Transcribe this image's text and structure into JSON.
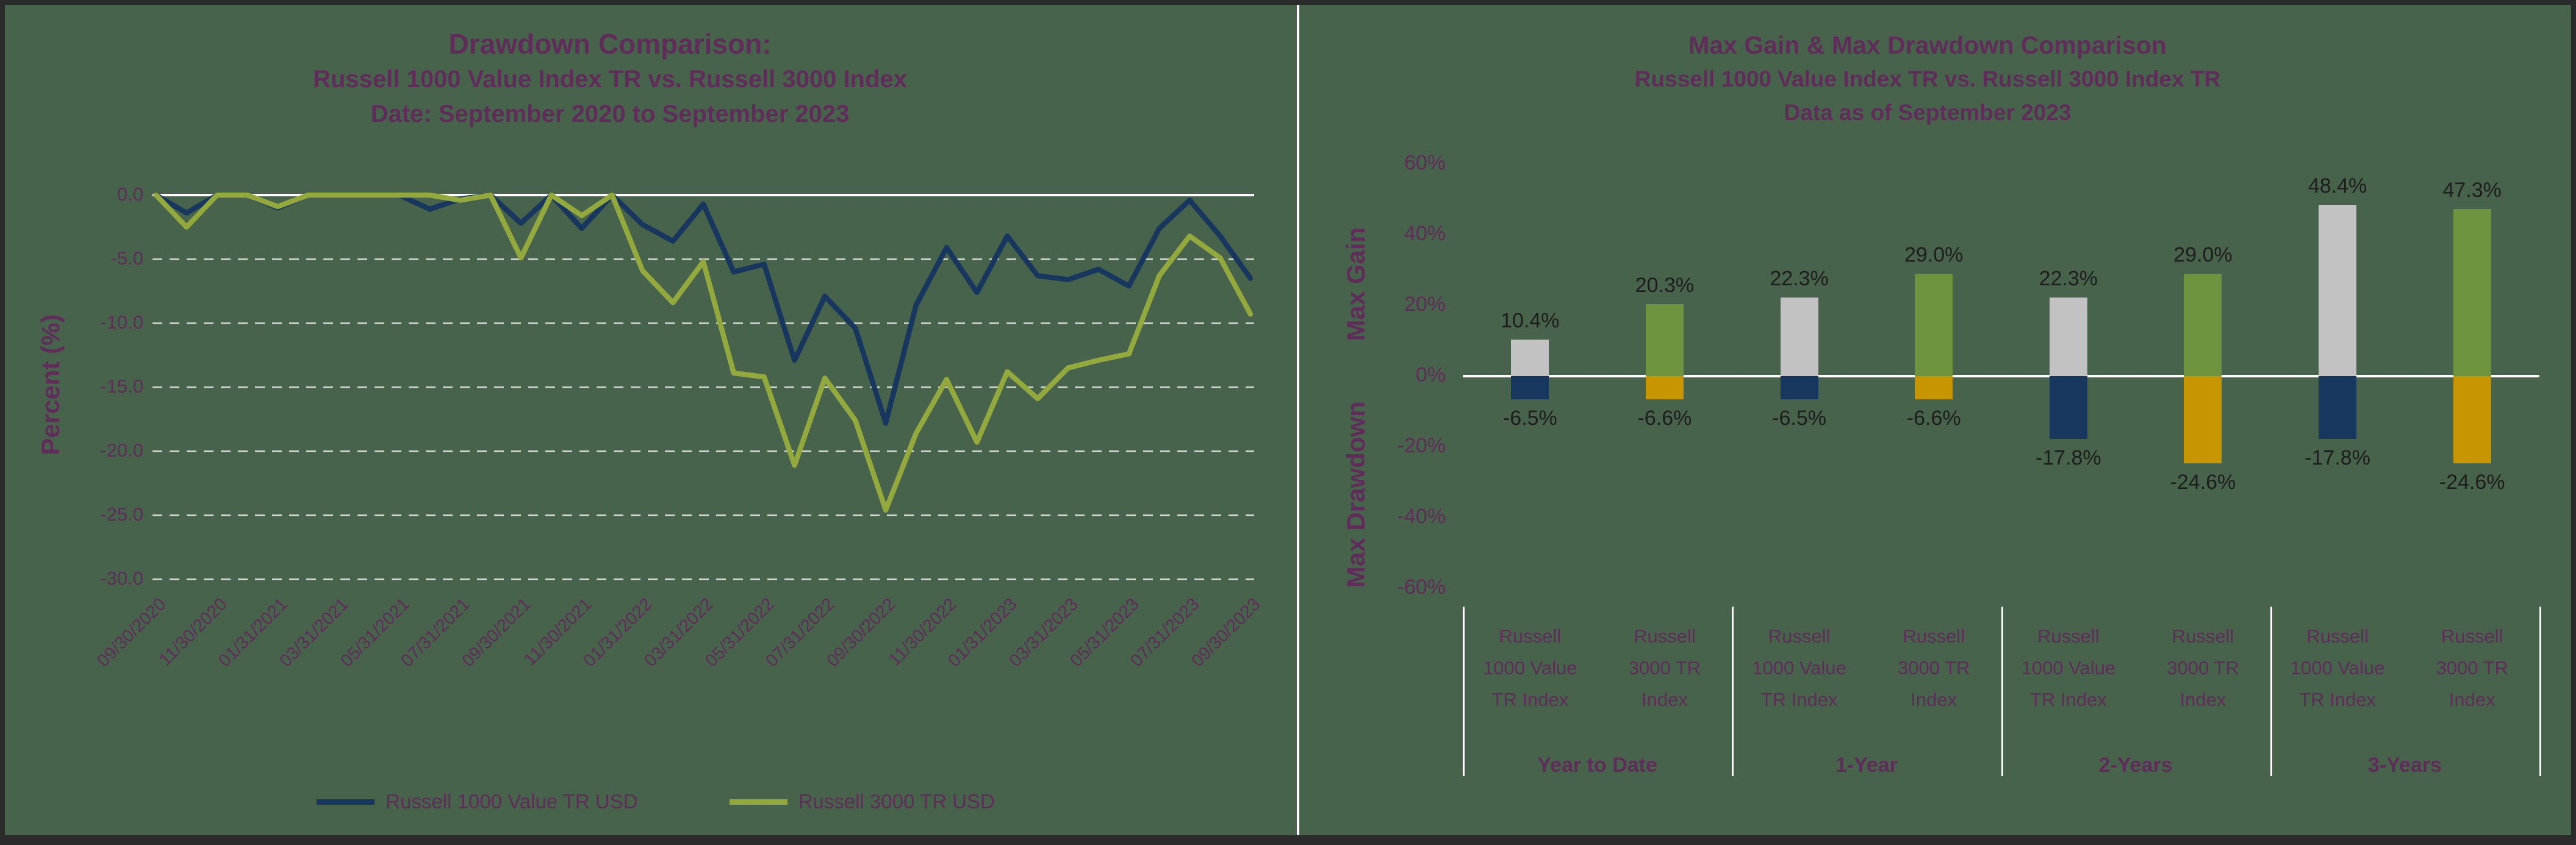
{
  "colors": {
    "background": "#47634b",
    "border": "#2b2b2b",
    "divider": "#ffffff",
    "grid_white": "#ffffff",
    "title_text": "#602d5a",
    "axis_text": "#602d5a",
    "data_label_text": "#1e1e1e",
    "navy": "#17375e",
    "line_green": "#93a83d",
    "bar_gray": "#c2c2c2",
    "bar_green": "#6f9440",
    "bar_gold": "#c79500"
  },
  "chart_data": [
    {
      "type": "line",
      "title": "Drawdown Comparison:",
      "subtitle1": "Russell 1000 Value Index TR vs. Russell 3000 Index",
      "subtitle2": "Date: September 2020 to September 2023",
      "ylabel": "Percent (%)",
      "ylim": [
        -30,
        0
      ],
      "grid": "dashed-horizontal",
      "legend_position": "bottom",
      "y_ticks": [
        "0.0",
        "-5.0",
        "-10.0",
        "-15.0",
        "-20.0",
        "-25.0",
        "-30.0"
      ],
      "x": [
        "09/30/2020",
        "10/31/2020",
        "11/30/2020",
        "12/31/2020",
        "01/31/2021",
        "02/28/2021",
        "03/31/2021",
        "04/30/2021",
        "05/31/2021",
        "06/30/2021",
        "07/31/2021",
        "08/31/2021",
        "09/30/2021",
        "10/31/2021",
        "11/30/2021",
        "12/31/2021",
        "01/31/2022",
        "02/28/2022",
        "03/31/2022",
        "04/30/2022",
        "05/31/2022",
        "06/30/2022",
        "07/31/2022",
        "08/31/2022",
        "09/30/2022",
        "10/31/2022",
        "11/30/2022",
        "12/31/2022",
        "01/31/2023",
        "02/28/2023",
        "03/31/2023",
        "04/30/2023",
        "05/31/2023",
        "06/30/2023",
        "07/31/2023",
        "08/31/2023",
        "09/30/2023"
      ],
      "x_tick_labels": [
        "09/30/2020",
        "11/30/2020",
        "01/31/2021",
        "03/31/2021",
        "05/31/2021",
        "07/31/2021",
        "09/30/2021",
        "11/30/2021",
        "01/31/2022",
        "03/31/2022",
        "05/31/2022",
        "07/31/2022",
        "09/30/2022",
        "11/30/2022",
        "01/31/2023",
        "03/31/2023",
        "05/31/2023",
        "07/31/2023",
        "09/30/2023"
      ],
      "series": [
        {
          "name": "Russell 1000 Value TR USD",
          "color": "#17375e",
          "values": [
            0,
            -1.4,
            0,
            0,
            -1.0,
            0,
            0,
            0,
            0,
            -1.1,
            -0.3,
            0,
            -2.2,
            0,
            -2.6,
            0,
            -2.3,
            -3.6,
            -0.7,
            -6.0,
            -5.4,
            -12.9,
            -7.9,
            -10.4,
            -17.8,
            -8.6,
            -4.1,
            -7.6,
            -3.2,
            -6.3,
            -6.6,
            -5.8,
            -7.1,
            -2.6,
            -0.4,
            -3.2,
            -6.5
          ]
        },
        {
          "name": "Russell 3000 TR USD",
          "color": "#93a83d",
          "values": [
            0,
            -2.5,
            0,
            0,
            -0.9,
            0,
            0,
            0,
            0,
            0,
            -0.4,
            0,
            -4.9,
            0,
            -1.6,
            0,
            -5.9,
            -8.4,
            -5.2,
            -13.9,
            -14.2,
            -21.1,
            -14.3,
            -17.6,
            -24.6,
            -18.6,
            -14.4,
            -19.3,
            -13.8,
            -15.9,
            -13.5,
            -12.9,
            -12.4,
            -6.3,
            -3.2,
            -4.9,
            -9.3
          ]
        }
      ]
    },
    {
      "type": "bar",
      "title": "Max Gain & Max Drawdown Comparison",
      "subtitle1": "Russell 1000 Value Index TR vs. Russell 3000 Index TR",
      "subtitle2": "Data as of September 2023",
      "axis_label_top": "Max Gain",
      "axis_label_bottom": "Max Drawdown",
      "ylim": [
        -60,
        60
      ],
      "y_ticks": [
        "60%",
        "40%",
        "20%",
        "0%",
        "-20%",
        "-40%",
        "-60%"
      ],
      "groups": [
        {
          "label": "Year to Date",
          "bars": [
            {
              "series": "Russell 1000 Value TR Index",
              "label_lines": [
                "Russell",
                "1000 Value",
                "TR Index"
              ],
              "max_gain": 10.4,
              "max_drawdown": -6.5,
              "gain_label": "10.4%",
              "drawdown_label": "-6.5%",
              "gain_color": "#c2c2c2",
              "drawdown_color": "#17375e"
            },
            {
              "series": "Russell 3000 TR Index",
              "label_lines": [
                "Russell",
                "3000 TR",
                "Index"
              ],
              "max_gain": 20.3,
              "max_drawdown": -6.6,
              "gain_label": "20.3%",
              "drawdown_label": "-6.6%",
              "gain_color": "#6f9440",
              "drawdown_color": "#c79500"
            }
          ]
        },
        {
          "label": "1-Year",
          "bars": [
            {
              "series": "Russell 1000 Value TR Index",
              "label_lines": [
                "Russell",
                "1000 Value",
                "TR Index"
              ],
              "max_gain": 22.3,
              "max_drawdown": -6.5,
              "gain_label": "22.3%",
              "drawdown_label": "-6.5%",
              "gain_color": "#c2c2c2",
              "drawdown_color": "#17375e"
            },
            {
              "series": "Russell 3000 TR Index",
              "label_lines": [
                "Russell",
                "3000 TR",
                "Index"
              ],
              "max_gain": 29.0,
              "max_drawdown": -6.6,
              "gain_label": "29.0%",
              "drawdown_label": "-6.6%",
              "gain_color": "#6f9440",
              "drawdown_color": "#c79500"
            }
          ]
        },
        {
          "label": "2-Years",
          "bars": [
            {
              "series": "Russell 1000 Value TR Index",
              "label_lines": [
                "Russell",
                "1000 Value",
                "TR Index"
              ],
              "max_gain": 22.3,
              "max_drawdown": -17.8,
              "gain_label": "22.3%",
              "drawdown_label": "-17.8%",
              "gain_color": "#c2c2c2",
              "drawdown_color": "#17375e"
            },
            {
              "series": "Russell 3000 TR Index",
              "label_lines": [
                "Russell",
                "3000 TR",
                "Index"
              ],
              "max_gain": 29.0,
              "max_drawdown": -24.6,
              "gain_label": "29.0%",
              "drawdown_label": "-24.6%",
              "gain_color": "#6f9440",
              "drawdown_color": "#c79500"
            }
          ]
        },
        {
          "label": "3-Years",
          "bars": [
            {
              "series": "Russell 1000 Value TR Index",
              "label_lines": [
                "Russell",
                "1000 Value",
                "TR Index"
              ],
              "max_gain": 48.4,
              "max_drawdown": -17.8,
              "gain_label": "48.4%",
              "drawdown_label": "-17.8%",
              "gain_color": "#c2c2c2",
              "drawdown_color": "#17375e"
            },
            {
              "series": "Russell 3000 TR Index",
              "label_lines": [
                "Russell",
                "3000 TR",
                "Index"
              ],
              "max_gain": 47.3,
              "max_drawdown": -24.6,
              "gain_label": "47.3%",
              "drawdown_label": "-24.6%",
              "gain_color": "#6f9440",
              "drawdown_color": "#c79500"
            }
          ]
        }
      ]
    }
  ]
}
